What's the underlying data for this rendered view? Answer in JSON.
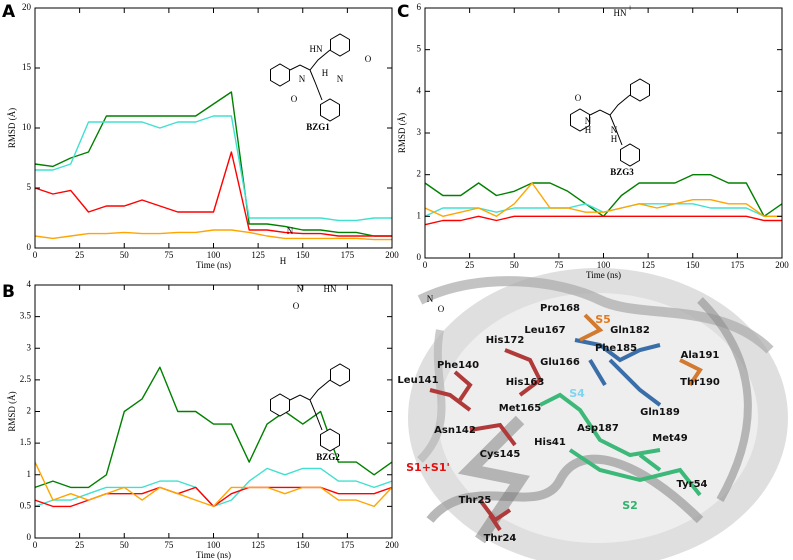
{
  "chart_data": [
    {
      "type": "line",
      "panel": "A",
      "compound": "BZG1",
      "structure_labels": [
        "HN",
        "N",
        "H",
        "N",
        "O",
        "O"
      ],
      "xlabel": "Time (ns)",
      "ylabel": "RMSD (Å)",
      "x": [
        0,
        10,
        20,
        30,
        40,
        50,
        60,
        70,
        80,
        90,
        100,
        110,
        120,
        130,
        140,
        150,
        160,
        170,
        180,
        190,
        200
      ],
      "xlim": [
        0,
        200
      ],
      "xticks": [
        0,
        25,
        50,
        75,
        100,
        125,
        150,
        175,
        200
      ],
      "ylim": [
        0,
        20
      ],
      "yticks": [
        0,
        5,
        10,
        15,
        20
      ],
      "series": [
        {
          "color": "#008000",
          "values": [
            7,
            6.8,
            7.5,
            8,
            11,
            11,
            11,
            11,
            11,
            11,
            12,
            13,
            2,
            2,
            1.8,
            1.5,
            1.5,
            1.3,
            1.3,
            1,
            1
          ]
        },
        {
          "color": "#40e0d0",
          "values": [
            6.5,
            6.5,
            7,
            10.5,
            10.5,
            10.5,
            10.5,
            10,
            10.5,
            10.5,
            11,
            11,
            2.5,
            2.5,
            2.5,
            2.5,
            2.5,
            2.3,
            2.3,
            2.5,
            2.5
          ]
        },
        {
          "color": "#ff0000",
          "values": [
            5,
            4.5,
            4.8,
            3,
            3.5,
            3.5,
            4,
            3.5,
            3,
            3,
            3,
            8,
            1.5,
            1.5,
            1.3,
            1.2,
            1.2,
            1,
            1,
            1,
            1
          ]
        },
        {
          "color": "#ffa500",
          "values": [
            1,
            0.8,
            1,
            1.2,
            1.2,
            1.3,
            1.2,
            1.2,
            1.3,
            1.3,
            1.5,
            1.5,
            1.3,
            1,
            0.8,
            0.8,
            0.8,
            0.8,
            0.8,
            0.7,
            0.7
          ]
        }
      ]
    },
    {
      "type": "line",
      "panel": "B",
      "compound": "BZG2",
      "structure_labels": [
        "N",
        "H",
        "N",
        "HN",
        "O",
        "N",
        "O"
      ],
      "xlabel": "Time (ns)",
      "ylabel": "RMSD (Å)",
      "x": [
        0,
        10,
        20,
        30,
        40,
        50,
        60,
        70,
        80,
        90,
        100,
        110,
        120,
        130,
        140,
        150,
        160,
        170,
        180,
        190,
        200
      ],
      "xlim": [
        0,
        200
      ],
      "xticks": [
        0,
        25,
        50,
        75,
        100,
        125,
        150,
        175,
        200
      ],
      "ylim": [
        0,
        4
      ],
      "yticks": [
        0,
        0.5,
        1,
        1.5,
        2,
        2.5,
        3,
        3.5,
        4
      ],
      "series": [
        {
          "color": "#008000",
          "values": [
            0.8,
            0.9,
            0.8,
            0.8,
            1,
            2,
            2.2,
            2.7,
            2,
            2,
            1.8,
            1.8,
            1.2,
            1.8,
            2,
            1.8,
            2,
            1.2,
            1.2,
            1,
            1.2
          ]
        },
        {
          "color": "#40e0d0",
          "values": [
            0.5,
            0.6,
            0.6,
            0.7,
            0.8,
            0.8,
            0.8,
            0.9,
            0.9,
            0.8,
            0.5,
            0.6,
            0.9,
            1.1,
            1,
            1.1,
            1.1,
            0.9,
            0.9,
            0.8,
            0.9
          ]
        },
        {
          "color": "#ff0000",
          "values": [
            0.6,
            0.5,
            0.5,
            0.6,
            0.7,
            0.7,
            0.7,
            0.8,
            0.7,
            0.8,
            0.5,
            0.7,
            0.8,
            0.8,
            0.8,
            0.8,
            0.8,
            0.7,
            0.7,
            0.7,
            0.8
          ]
        },
        {
          "color": "#ffa500",
          "values": [
            1.2,
            0.6,
            0.7,
            0.6,
            0.7,
            0.8,
            0.6,
            0.8,
            0.7,
            0.6,
            0.5,
            0.8,
            0.8,
            0.8,
            0.7,
            0.8,
            0.8,
            0.6,
            0.6,
            0.5,
            0.8
          ]
        }
      ]
    },
    {
      "type": "line",
      "panel": "C",
      "compound": "BZG3",
      "structure_labels": [
        "HN",
        "+",
        "O",
        "N",
        "H",
        "N",
        "H"
      ],
      "xlabel": "Time (ns)",
      "ylabel": "RMSD (Å)",
      "x": [
        0,
        10,
        20,
        30,
        40,
        50,
        60,
        70,
        80,
        90,
        100,
        110,
        120,
        130,
        140,
        150,
        160,
        170,
        180,
        190,
        200
      ],
      "xlim": [
        0,
        200
      ],
      "xticks": [
        0,
        25,
        50,
        75,
        100,
        125,
        150,
        175,
        200
      ],
      "ylim": [
        0,
        6
      ],
      "yticks": [
        0,
        1,
        2,
        3,
        4,
        5,
        6
      ],
      "series": [
        {
          "color": "#008000",
          "values": [
            1.8,
            1.5,
            1.5,
            1.8,
            1.5,
            1.6,
            1.8,
            1.8,
            1.6,
            1.3,
            1,
            1.5,
            1.8,
            1.8,
            1.8,
            2,
            2,
            1.8,
            1.8,
            1,
            1.3
          ]
        },
        {
          "color": "#40e0d0",
          "values": [
            1,
            1.2,
            1.2,
            1.2,
            1.1,
            1.2,
            1.2,
            1.2,
            1.2,
            1.3,
            1.1,
            1.2,
            1.3,
            1.3,
            1.3,
            1.3,
            1.2,
            1.2,
            1.2,
            1,
            1
          ]
        },
        {
          "color": "#ff0000",
          "values": [
            0.8,
            0.9,
            0.9,
            1,
            0.9,
            1,
            1,
            1,
            1,
            1,
            1,
            1,
            1,
            1,
            1,
            1,
            1,
            1,
            1,
            0.9,
            0.9
          ]
        },
        {
          "color": "#ffa500",
          "values": [
            1.2,
            1,
            1.1,
            1.2,
            1,
            1.3,
            1.8,
            1.2,
            1.2,
            1.1,
            1.1,
            1.2,
            1.3,
            1.2,
            1.3,
            1.4,
            1.4,
            1.3,
            1.3,
            1,
            1
          ]
        }
      ]
    }
  ],
  "structure_panel": {
    "residues": [
      "Pro168",
      "Leu167",
      "Gln182",
      "Phe185",
      "His172",
      "Ala191",
      "Phe140",
      "Glu166",
      "His163",
      "Leu141",
      "Thr190",
      "Met165",
      "Gln189",
      "Asp187",
      "Asn142",
      "Cys145",
      "His41",
      "Met49",
      "Tyr54",
      "Thr25",
      "Thr24"
    ],
    "subsites": [
      {
        "label": "S5",
        "color": "#e07a20"
      },
      {
        "label": "S4",
        "color": "#7fd4f0"
      },
      {
        "label": "S1+S1'",
        "color": "#e01010"
      },
      {
        "label": "S2",
        "color": "#2fb36a"
      }
    ]
  }
}
